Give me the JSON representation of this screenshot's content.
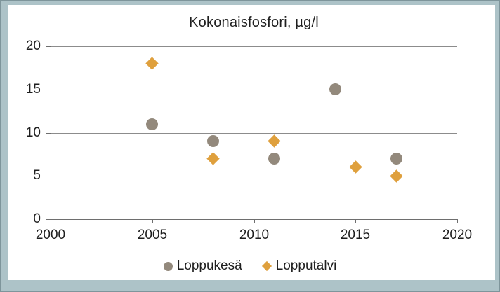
{
  "frame": {
    "background_color": "#ADC3C8",
    "border_color": "#7E959B",
    "canvas_color": "#FFFFFF"
  },
  "chart_data": {
    "type": "scatter",
    "title": "Kokonaisfosfori, µg/l",
    "xlabel": "",
    "ylabel": "",
    "xlim": [
      2000,
      2020
    ],
    "ylim": [
      0,
      20
    ],
    "x_ticks": [
      "2000",
      "2005",
      "2010",
      "2015",
      "2020"
    ],
    "y_ticks": [
      "0",
      "5",
      "10",
      "15",
      "20"
    ],
    "grid": "horizontal-only",
    "legend_position": "bottom",
    "gridline_color": "#8C8C8C",
    "axis_color": "#6E6E6E",
    "text_color": "#1F1F1F",
    "series": [
      {
        "name": "Loppukesä",
        "marker": "circle",
        "color": "#93897C",
        "points": [
          {
            "x": 2005,
            "y": 11
          },
          {
            "x": 2008,
            "y": 9
          },
          {
            "x": 2011,
            "y": 7
          },
          {
            "x": 2014,
            "y": 15
          },
          {
            "x": 2017,
            "y": 7
          }
        ]
      },
      {
        "name": "Lopputalvi",
        "marker": "diamond",
        "color": "#DFA03D",
        "points": [
          {
            "x": 2005,
            "y": 18
          },
          {
            "x": 2008,
            "y": 7
          },
          {
            "x": 2011,
            "y": 9
          },
          {
            "x": 2015,
            "y": 6
          },
          {
            "x": 2017,
            "y": 5
          }
        ]
      }
    ]
  }
}
